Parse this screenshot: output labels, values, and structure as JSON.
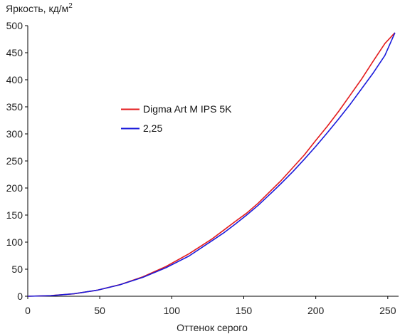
{
  "chart_data": {
    "type": "line",
    "title": "",
    "ylabel": "Яркость, кд/м",
    "ylabel_sup": "2",
    "xlabel": "Оттенок серого",
    "xlim": [
      0,
      258
    ],
    "ylim": [
      0,
      500
    ],
    "xticks": [
      0,
      50,
      100,
      150,
      200,
      250
    ],
    "yticks": [
      0,
      50,
      100,
      150,
      200,
      250,
      300,
      350,
      400,
      450,
      500
    ],
    "xtick_labels": [
      "0",
      "50",
      "100",
      "150",
      "200",
      "250"
    ],
    "ytick_labels": [
      "0",
      "50",
      "100",
      "150",
      "200",
      "250",
      "300",
      "350",
      "400",
      "450",
      "500"
    ],
    "grid": false,
    "legend_position": "upper-left-center",
    "series": [
      {
        "name": "Digma Art M IPS 5K",
        "color": "#e31a1c",
        "x": [
          0,
          16,
          32,
          48,
          64,
          80,
          96,
          112,
          128,
          136,
          144,
          152,
          160,
          168,
          176,
          184,
          192,
          200,
          208,
          216,
          224,
          232,
          240,
          248,
          255
        ],
        "y": [
          0,
          1.2,
          4.5,
          11,
          21.5,
          36,
          55,
          78.5,
          106,
          122,
          138,
          153.5,
          172,
          193,
          214,
          237.5,
          261,
          288,
          314,
          342,
          372,
          402,
          435,
          467,
          487
        ]
      },
      {
        "name": "2,25",
        "color": "#1a1adb",
        "x": [
          0,
          16,
          32,
          48,
          64,
          80,
          96,
          112,
          128,
          136,
          144,
          152,
          160,
          168,
          176,
          184,
          192,
          200,
          208,
          216,
          224,
          232,
          240,
          248,
          255
        ],
        "y": [
          0,
          1.0,
          4.6,
          11.1,
          21.2,
          35.0,
          52.8,
          74.4,
          102.8,
          117,
          133,
          150,
          168,
          188,
          208.5,
          230,
          253,
          277,
          302,
          328,
          355,
          384,
          413,
          445,
          487
        ]
      }
    ]
  }
}
